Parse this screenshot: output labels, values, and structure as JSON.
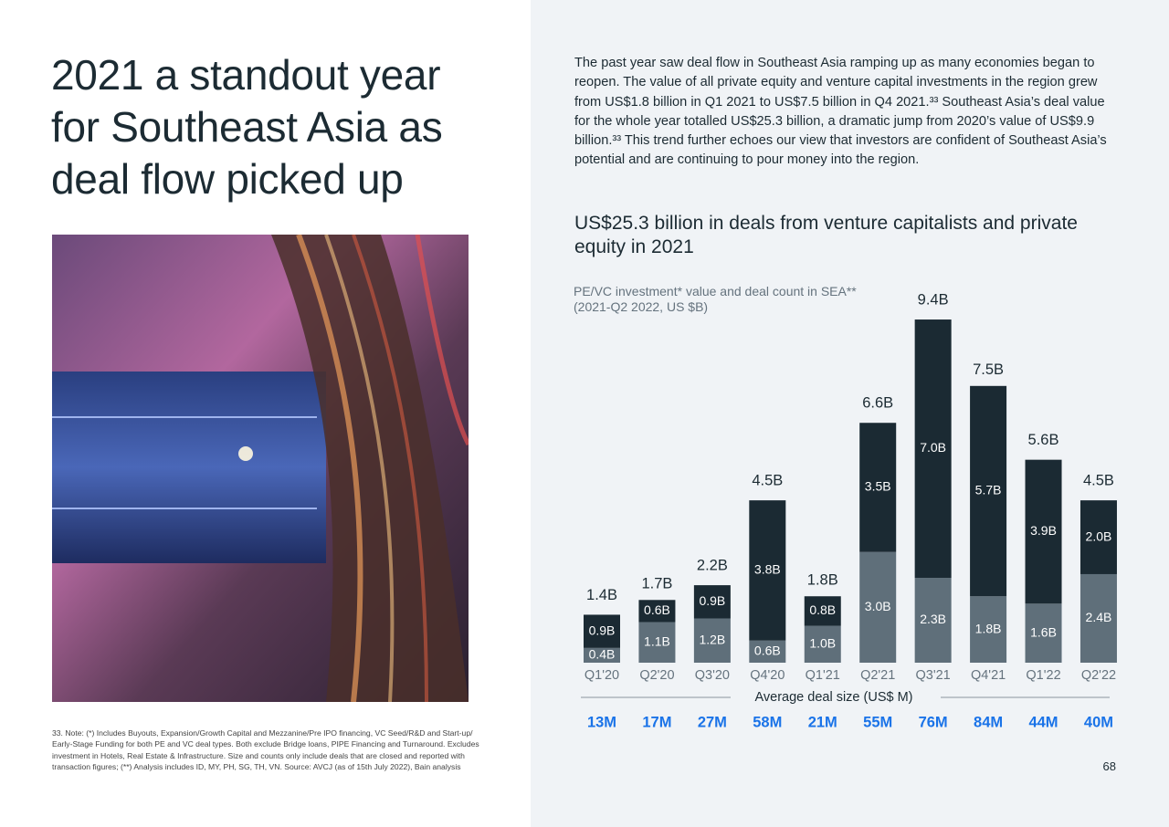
{
  "title_lines": [
    "2021 a standout year",
    "for Southeast Asia as",
    "deal flow picked up"
  ],
  "footnote": "33. Note: (*) Includes Buyouts, Expansion/Growth Capital and Mezzanine/Pre IPO financing, VC Seed/R&D and Start-up/ Early-Stage Funding for both PE and VC deal types. Both exclude Bridge loans, PIPE Financing and Turnaround. Excludes investment in Hotels, Real Estate & Infrastructure. Size and counts only include deals that are closed and reported with transaction figures; (**) Analysis includes ID, MY, PH, SG, TH, VN. Source: AVCJ (as of 15th July 2022), Bain analysis",
  "body": "The past year saw deal flow in Southeast Asia ramping up as many economies began to reopen. The value of all private equity and venture capital investments in the region grew from US$1.8 billion in Q1 2021 to US$7.5 billion in Q4 2021.³³ Southeast Asia’s deal value for the whole year totalled US$25.3 billion, a dramatic jump from 2020’s value of US$9.9 billion.³³ This trend further echoes our view that investors are confident of Southeast Asia’s potential and are continuing to pour money into the region.",
  "page_number": "68",
  "chart_data": {
    "type": "bar",
    "stacked": true,
    "title": "US$25.3 billion in deals from venture capitalists and private equity in 2021",
    "subtitle_lines": [
      "PE/VC investment* value and deal count in SEA**",
      "(2021-Q2 2022, US $B)"
    ],
    "categories": [
      "Q1'20",
      "Q2'20",
      "Q3'20",
      "Q4'20",
      "Q1'21",
      "Q2'21",
      "Q3'21",
      "Q4'21",
      "Q1'22",
      "Q2'22"
    ],
    "series": [
      {
        "color": "#5f6f7a",
        "values": [
          0.4,
          1.1,
          1.2,
          0.6,
          1.0,
          3.0,
          2.3,
          1.8,
          1.6,
          2.4
        ],
        "value_labels": [
          "0.4B",
          "1.1B",
          "1.2B",
          "0.6B",
          "1.0B",
          "3.0B",
          "2.3B",
          "1.8B",
          "1.6B",
          "2.4B"
        ]
      },
      {
        "color": "#1b2a33",
        "values": [
          0.9,
          0.6,
          0.9,
          3.8,
          0.8,
          3.5,
          7.0,
          5.7,
          3.9,
          2.0
        ],
        "value_labels": [
          "0.9B",
          "0.6B",
          "0.9B",
          "3.8B",
          "0.8B",
          "3.5B",
          "7.0B",
          "5.7B",
          "3.9B",
          "2.0B"
        ]
      }
    ],
    "totals": {
      "values": [
        1.4,
        1.7,
        2.2,
        4.5,
        1.8,
        6.6,
        9.4,
        7.5,
        5.6,
        4.5
      ],
      "value_labels": [
        "1.4B",
        "1.7B",
        "2.2B",
        "4.5B",
        "1.8B",
        "6.6B",
        "9.4B",
        "7.5B",
        "5.6B",
        "4.5B"
      ]
    },
    "avg_deal_size": {
      "label": "Average deal size (US$ M)",
      "color": "#1a73e8",
      "values": [
        13,
        17,
        27,
        58,
        21,
        55,
        76,
        84,
        44,
        40
      ],
      "value_labels": [
        "13M",
        "17M",
        "27M",
        "58M",
        "21M",
        "55M",
        "76M",
        "84M",
        "44M",
        "40M"
      ]
    }
  }
}
